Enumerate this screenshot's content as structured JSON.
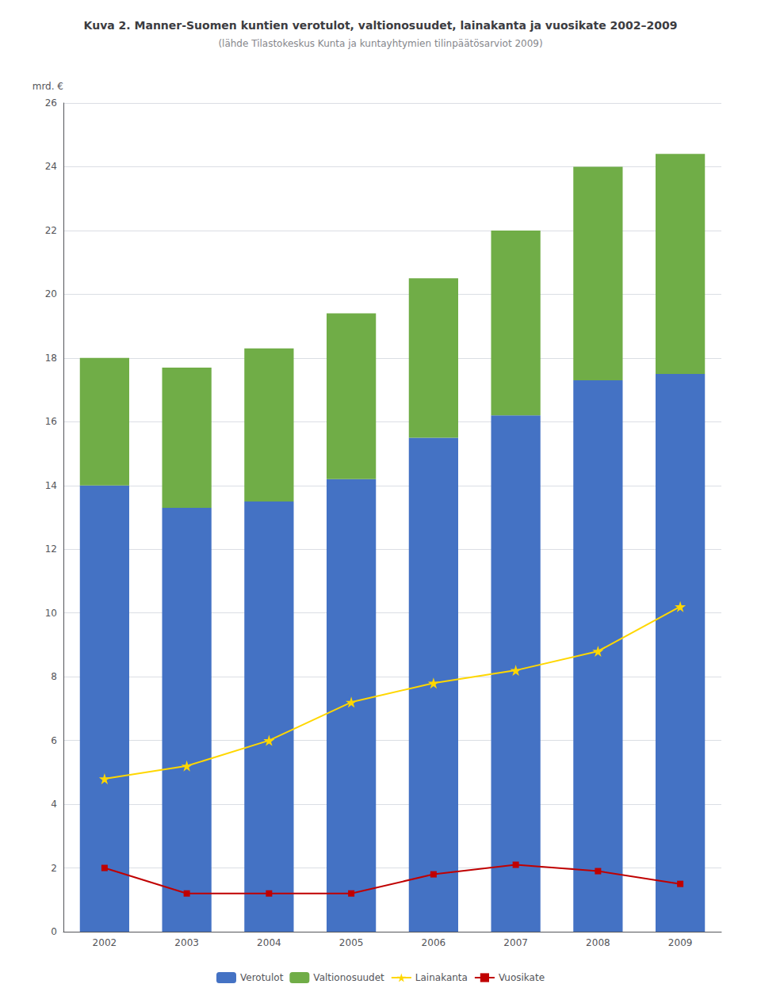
{
  "chart_data": {
    "type": "bar",
    "title": "Kuva 2. Manner-Suomen kuntien verotulot, valtionosuudet, lainakanta ja vuosikate 2002–2009",
    "subtitle": "(lähde Tilastokeskus Kunta ja kuntayhtymien tilinpäätösarviot 2009)",
    "categories": [
      "2002",
      "2003",
      "2004",
      "2005",
      "2006",
      "2007",
      "2008",
      "2009"
    ],
    "series": [
      {
        "name": "Verotulot",
        "type": "bar",
        "color": "#4472C4",
        "values": [
          14.0,
          13.3,
          13.5,
          14.2,
          15.5,
          16.2,
          17.3,
          17.5
        ]
      },
      {
        "name": "Valtionosuudet",
        "type": "bar",
        "color": "#70AD47",
        "values": [
          4.0,
          4.4,
          4.8,
          5.2,
          5.0,
          5.8,
          6.7,
          6.9
        ]
      },
      {
        "name": "Lainakanta",
        "type": "line",
        "color": "#FFD700",
        "marker": "star",
        "values": [
          4.8,
          5.2,
          6.0,
          7.2,
          7.8,
          8.2,
          8.8,
          10.2
        ]
      },
      {
        "name": "Vuosikate",
        "type": "line",
        "color": "#C00000",
        "marker": "square",
        "values": [
          2.0,
          1.2,
          1.2,
          1.2,
          1.8,
          2.1,
          1.9,
          1.5
        ]
      }
    ],
    "stacked": true,
    "ylabel": "mrd. €",
    "ylim": [
      0,
      26
    ],
    "yticks": [
      0,
      2,
      4,
      6,
      8,
      10,
      12,
      14,
      16,
      18,
      20,
      22,
      24,
      26
    ],
    "grid": true,
    "legend": "bottom"
  }
}
